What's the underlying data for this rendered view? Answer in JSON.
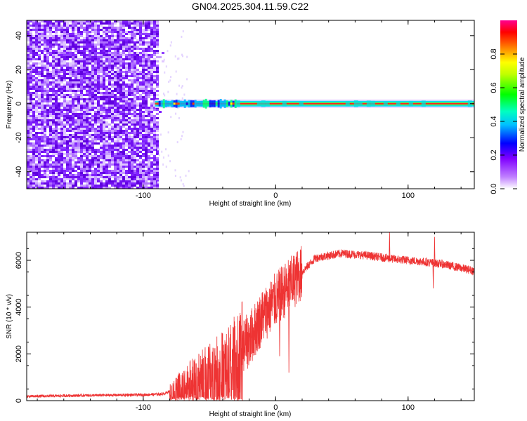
{
  "title": "GN04.2025.304.11.59.C22",
  "chart_data": [
    {
      "type": "heatmap",
      "xlabel": "Height of straight line (km)",
      "ylabel": "Frequency (Hz)",
      "xlim": [
        -188,
        150
      ],
      "ylim": [
        -50,
        49
      ],
      "x_ticks": [
        -100,
        0,
        100
      ],
      "y_ticks": [
        -40,
        -20,
        0,
        20,
        40
      ],
      "description": "Broadband noise below about -90 km, narrow carrier line near 0 Hz above",
      "colorbar": {
        "label": "Normalized spectral amplitude",
        "range": [
          0.0,
          1.0
        ],
        "ticks": [
          "0.0",
          "0.2",
          "0.4",
          "0.6",
          "0.8"
        ],
        "colors": [
          "#ffffff",
          "#a000ff",
          "#0000ff",
          "#00ffff",
          "#00ff00",
          "#ffff00",
          "#ff0000",
          "#ff0090"
        ]
      },
      "noise_edge_x": -90,
      "carrier_freq": 0
    },
    {
      "type": "line",
      "xlabel": "Height of straight line (km)",
      "ylabel": "SNR (10 * v/v)",
      "xlim": [
        -188,
        150
      ],
      "ylim": [
        0,
        7200
      ],
      "x_ticks": [
        -100,
        0,
        100
      ],
      "y_ticks": [
        0,
        2000,
        4000,
        6000
      ],
      "color": "#ee3333",
      "profile": [
        {
          "x": -188,
          "y": 180
        },
        {
          "x": -150,
          "y": 220
        },
        {
          "x": -100,
          "y": 250
        },
        {
          "x": -85,
          "y": 280
        },
        {
          "x": -78,
          "y": 450
        },
        {
          "x": -65,
          "y": 900
        },
        {
          "x": -50,
          "y": 1300
        },
        {
          "x": -35,
          "y": 1700
        },
        {
          "x": -20,
          "y": 2600
        },
        {
          "x": -10,
          "y": 3600
        },
        {
          "x": 0,
          "y": 4300
        },
        {
          "x": 15,
          "y": 5200
        },
        {
          "x": 30,
          "y": 6100
        },
        {
          "x": 50,
          "y": 6300
        },
        {
          "x": 70,
          "y": 6200
        },
        {
          "x": 90,
          "y": 6050
        },
        {
          "x": 110,
          "y": 5950
        },
        {
          "x": 125,
          "y": 5850
        },
        {
          "x": 150,
          "y": 5550
        }
      ],
      "spikes": [
        {
          "x": 86,
          "y": 7200
        },
        {
          "x": 120,
          "y": 7000
        },
        {
          "x": 119,
          "y": 4800
        },
        {
          "x": 10,
          "y": 1200
        },
        {
          "x": 3,
          "y": 1900
        }
      ]
    }
  ]
}
